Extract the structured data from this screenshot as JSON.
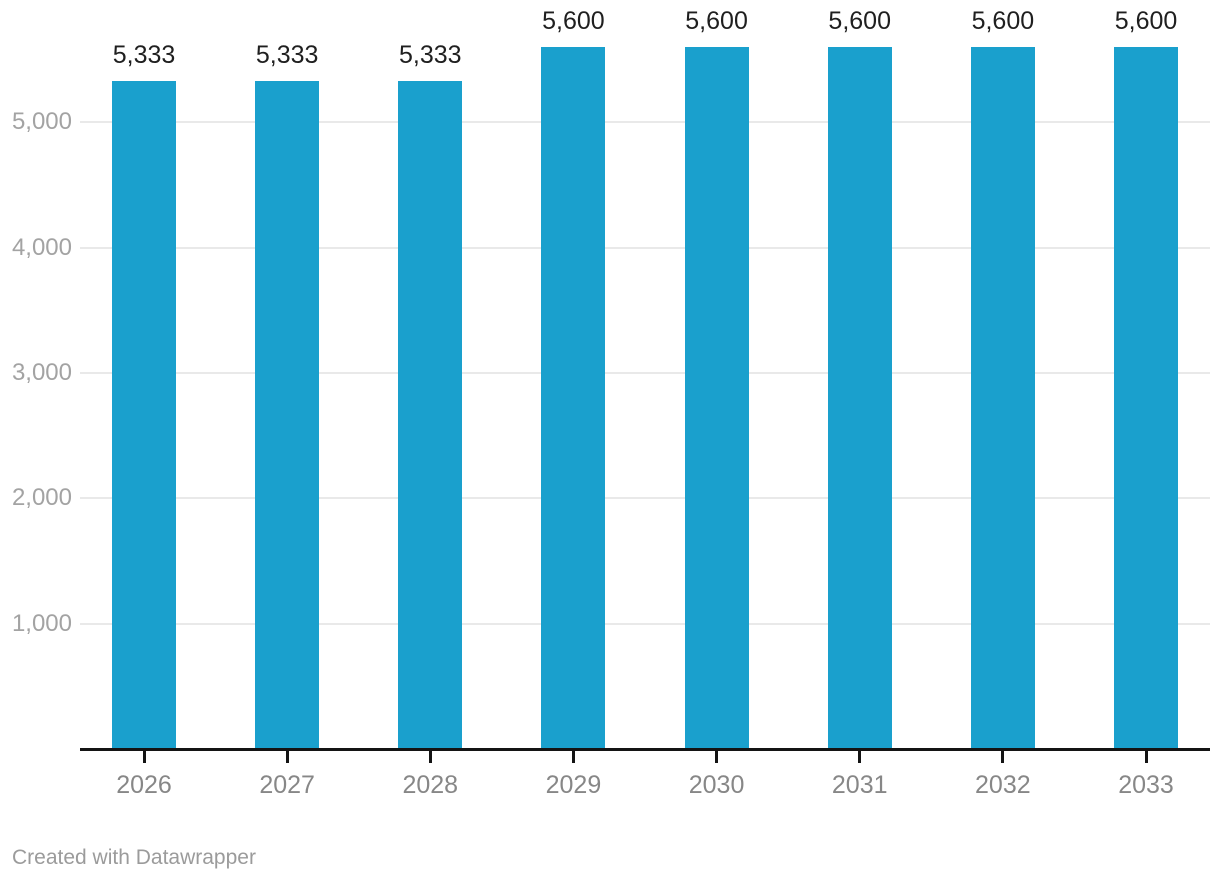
{
  "chart_data": {
    "type": "bar",
    "categories": [
      "2026",
      "2027",
      "2028",
      "2029",
      "2030",
      "2031",
      "2032",
      "2033"
    ],
    "values": [
      5333,
      5333,
      5333,
      5600,
      5600,
      5600,
      5600,
      5600
    ],
    "value_labels": [
      "5,333",
      "5,333",
      "5,333",
      "5,600",
      "5,600",
      "5,600",
      "5,600",
      "5,600"
    ],
    "yticks": [
      {
        "value": 1000,
        "label": "1,000"
      },
      {
        "value": 2000,
        "label": "2,000"
      },
      {
        "value": 3000,
        "label": "3,000"
      },
      {
        "value": 4000,
        "label": "4,000"
      },
      {
        "value": 5000,
        "label": "5,000"
      }
    ],
    "ylim": [
      0,
      5976
    ],
    "title": "",
    "xlabel": "",
    "ylabel": "",
    "grid": true,
    "legend_position": "none",
    "bar_color": "#1aa0cd",
    "value_label_color": "#1f1f1f",
    "axis_label_color": "#878787",
    "ytick_label_color": "#a3a3a3",
    "gridline_color": "#e9e9e9",
    "baseline_color": "#141414"
  },
  "footer": {
    "credit": "Created with Datawrapper"
  }
}
